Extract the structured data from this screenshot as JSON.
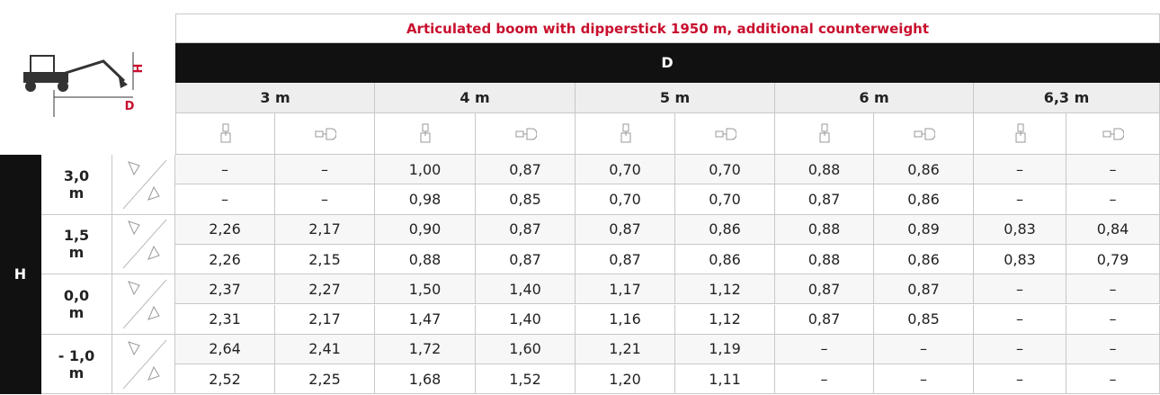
{
  "diagram": {
    "h": "H",
    "d": "D"
  },
  "table": {
    "title": "Articulated boom with dipperstick 1950 m, additional counterweight",
    "d_label": "D",
    "h_label": "H",
    "distances": [
      "3 m",
      "4 m",
      "5 m",
      "6 m",
      "6,3 m"
    ],
    "heights": [
      "3,0 m",
      "1,5 m",
      "0,0 m",
      "- 1,0 m"
    ],
    "rows": [
      [
        "–",
        "–",
        "1,00",
        "0,87",
        "0,70",
        "0,70",
        "0,88",
        "0,86",
        "–",
        "–"
      ],
      [
        "–",
        "–",
        "0,98",
        "0,85",
        "0,70",
        "0,70",
        "0,87",
        "0,86",
        "–",
        "–"
      ],
      [
        "2,26",
        "2,17",
        "0,90",
        "0,87",
        "0,87",
        "0,86",
        "0,88",
        "0,89",
        "0,83",
        "0,84"
      ],
      [
        "2,26",
        "2,15",
        "0,88",
        "0,87",
        "0,87",
        "0,86",
        "0,88",
        "0,86",
        "0,83",
        "0,79"
      ],
      [
        "2,37",
        "2,27",
        "1,50",
        "1,40",
        "1,17",
        "1,12",
        "0,87",
        "0,87",
        "–",
        "–"
      ],
      [
        "2,31",
        "2,17",
        "1,47",
        "1,40",
        "1,16",
        "1,12",
        "0,87",
        "0,85",
        "–",
        "–"
      ],
      [
        "2,64",
        "2,41",
        "1,72",
        "1,60",
        "1,21",
        "1,19",
        "–",
        "–",
        "–",
        "–"
      ],
      [
        "2,52",
        "2,25",
        "1,68",
        "1,52",
        "1,20",
        "1,11",
        "–",
        "–",
        "–",
        "–"
      ]
    ]
  }
}
